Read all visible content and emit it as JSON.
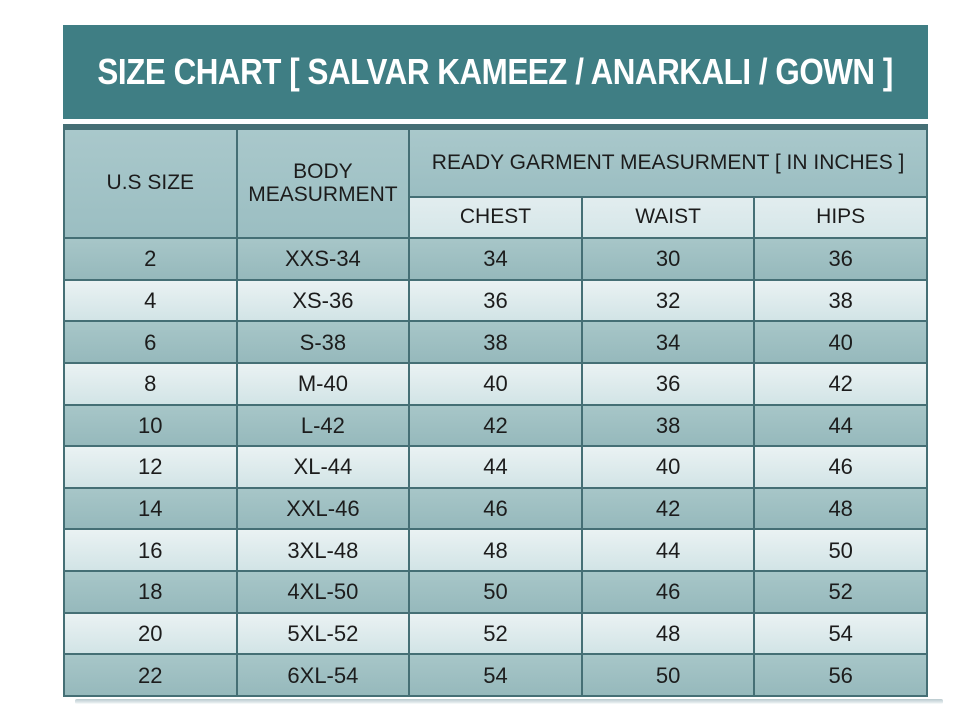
{
  "title": "SIZE CHART [ SALVAR KAMEEZ / ANARKALI / GOWN ]",
  "colors": {
    "title_bg": "#3F7E84",
    "title_text": "#FFFFFF",
    "header_bg_medium": "#9FC2C5",
    "header_bg_light": "#DBE9EB",
    "row_dark": "#9CBEC1",
    "row_light": "#D8E8EA",
    "grid_border": "#456F75",
    "cell_text": "#1C1C1C"
  },
  "table": {
    "header": {
      "us_size": "U.S SIZE",
      "body_measurement": "BODY MEASURMENT",
      "ready_garment": "READY GARMENT MEASURMENT [ IN INCHES ]",
      "chest": "CHEST",
      "waist": "WAIST",
      "hips": "HIPS"
    },
    "rows": [
      [
        "2",
        "XXS-34",
        "34",
        "30",
        "36"
      ],
      [
        "4",
        "XS-36",
        "36",
        "32",
        "38"
      ],
      [
        "6",
        "S-38",
        "38",
        "34",
        "40"
      ],
      [
        "8",
        "M-40",
        "40",
        "36",
        "42"
      ],
      [
        "10",
        "L-42",
        "42",
        "38",
        "44"
      ],
      [
        "12",
        "XL-44",
        "44",
        "40",
        "46"
      ],
      [
        "14",
        "XXL-46",
        "46",
        "42",
        "48"
      ],
      [
        "16",
        "3XL-48",
        "48",
        "44",
        "50"
      ],
      [
        "18",
        "4XL-50",
        "50",
        "46",
        "52"
      ],
      [
        "20",
        "5XL-52",
        "52",
        "48",
        "54"
      ],
      [
        "22",
        "6XL-54",
        "54",
        "50",
        "56"
      ]
    ]
  },
  "chart_data": {
    "type": "table",
    "title": "SIZE CHART [ SALVAR KAMEEZ / ANARKALI / GOWN ]",
    "units": "inches",
    "columns": [
      "U.S SIZE",
      "BODY MEASURMENT",
      "CHEST",
      "WAIST",
      "HIPS"
    ],
    "column_groups": [
      {
        "label": "READY GARMENT MEASURMENT [ IN INCHES ]",
        "spans": [
          "CHEST",
          "WAIST",
          "HIPS"
        ]
      }
    ],
    "rows": [
      [
        "2",
        "XXS-34",
        34,
        30,
        36
      ],
      [
        "4",
        "XS-36",
        36,
        32,
        38
      ],
      [
        "6",
        "S-38",
        38,
        34,
        40
      ],
      [
        "8",
        "M-40",
        40,
        36,
        42
      ],
      [
        "10",
        "L-42",
        42,
        38,
        44
      ],
      [
        "12",
        "XL-44",
        44,
        40,
        46
      ],
      [
        "14",
        "XXL-46",
        46,
        42,
        48
      ],
      [
        "16",
        "3XL-48",
        48,
        44,
        50
      ],
      [
        "18",
        "4XL-50",
        50,
        46,
        52
      ],
      [
        "20",
        "5XL-52",
        52,
        48,
        54
      ],
      [
        "22",
        "6XL-54",
        54,
        50,
        56
      ]
    ]
  }
}
